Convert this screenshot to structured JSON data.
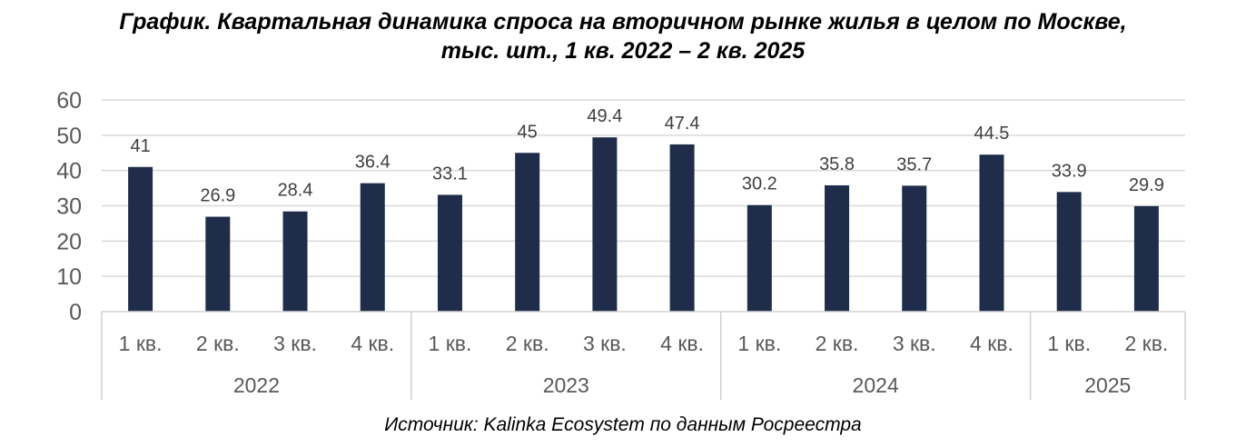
{
  "title_line1": "График. Квартальная динамика спроса на вторичном рынке жилья в целом по Москве,",
  "title_line2": "тыс. шт., 1 кв. 2022 – 2 кв. 2025",
  "source": "Источник: Kalinka Ecosystem по данным Росреестра",
  "colors": {
    "bar": "#1f2d4b",
    "grid": "#d9d9d9",
    "axis": "#d0d0d0"
  },
  "chart_data": {
    "type": "bar",
    "categories": [
      "1 кв.",
      "2 кв.",
      "3 кв.",
      "4 кв.",
      "1 кв.",
      "2 кв.",
      "3 кв.",
      "4 кв.",
      "1 кв.",
      "2 кв.",
      "3 кв.",
      "4 кв.",
      "1 кв.",
      "2 кв."
    ],
    "groups": [
      {
        "label": "2022",
        "count": 4
      },
      {
        "label": "2023",
        "count": 4
      },
      {
        "label": "2024",
        "count": 4
      },
      {
        "label": "2025",
        "count": 2
      }
    ],
    "values": [
      41,
      26.9,
      28.4,
      36.4,
      33.1,
      45,
      49.4,
      47.4,
      30.2,
      35.8,
      35.7,
      44.5,
      33.9,
      29.9
    ],
    "data_labels": [
      "41",
      "26.9",
      "28.4",
      "36.4",
      "33.1",
      "45",
      "49.4",
      "47.4",
      "30.2",
      "35.8",
      "35.7",
      "44.5",
      "33.9",
      "29.9"
    ],
    "yticks": [
      0,
      10,
      20,
      30,
      40,
      50,
      60
    ],
    "ylim": [
      0,
      60
    ],
    "grid": true,
    "legend": "none"
  }
}
